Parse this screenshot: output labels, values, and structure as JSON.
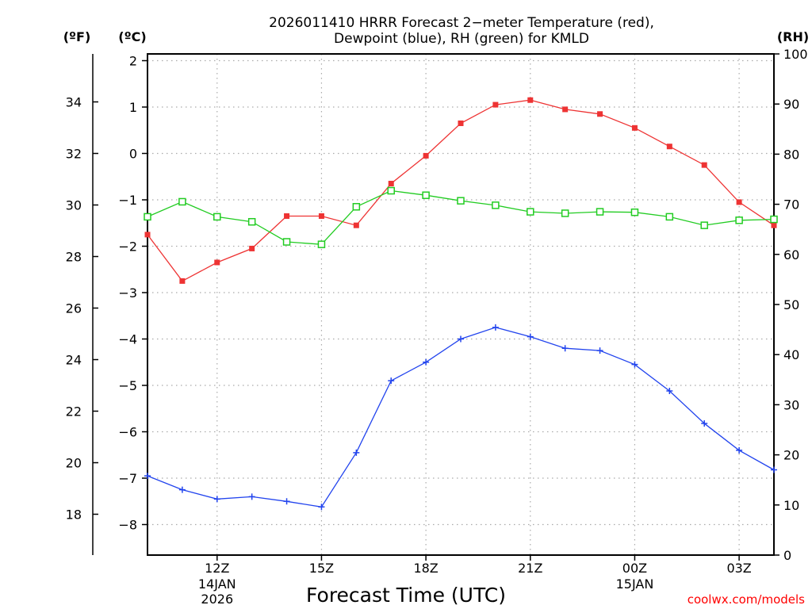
{
  "chart_data": {
    "type": "line",
    "title_line1": "2026011410 HRRR Forecast 2−meter Temperature (red),",
    "title_line2": "Dewpoint (blue), RH (green) for KMLD",
    "xlabel": "Forecast Time (UTC)",
    "credit": "coolwx.com/models",
    "credit_color": "#ff0000",
    "units": {
      "fahrenheit": "(ºF)",
      "celsius": "(ºC)",
      "rh": "(RH)"
    },
    "x": [
      10,
      11,
      12,
      13,
      14,
      15,
      16,
      17,
      18,
      19,
      20,
      21,
      22,
      23,
      24,
      25,
      26,
      27,
      28
    ],
    "xlim": [
      10,
      28
    ],
    "celsius_range": [
      -8.85,
      2.1
    ],
    "rh_range": [
      0,
      100
    ],
    "celsius_ticks": [
      "2",
      "1",
      "0",
      "−1",
      "−2",
      "−3",
      "−4",
      "−5",
      "−6",
      "−7",
      "−8"
    ],
    "celsius_tick_values": [
      2,
      1,
      0,
      -1,
      -2,
      -3,
      -4,
      -5,
      -6,
      -7,
      -8
    ],
    "fahrenheit_ticks": [
      "34",
      "32",
      "30",
      "28",
      "26",
      "24",
      "22",
      "20",
      "18"
    ],
    "fahrenheit_tick_values": [
      34,
      32,
      30,
      28,
      26,
      24,
      22,
      20,
      18
    ],
    "rh_ticks": [
      "100",
      "90",
      "80",
      "70",
      "60",
      "50",
      "40",
      "30",
      "20",
      "10",
      "0"
    ],
    "rh_tick_values": [
      100,
      90,
      80,
      70,
      60,
      50,
      40,
      30,
      20,
      10,
      0
    ],
    "x_ticks": [
      {
        "x": 12,
        "label": "12Z",
        "date1": "14JAN",
        "date2": "2026"
      },
      {
        "x": 15,
        "label": "15Z",
        "date1": "",
        "date2": ""
      },
      {
        "x": 18,
        "label": "18Z",
        "date1": "",
        "date2": ""
      },
      {
        "x": 21,
        "label": "21Z",
        "date1": "",
        "date2": ""
      },
      {
        "x": 24,
        "label": "00Z",
        "date1": "15JAN",
        "date2": ""
      },
      {
        "x": 27,
        "label": "03Z",
        "date1": "",
        "date2": ""
      }
    ],
    "grid": true,
    "series": [
      {
        "name": "Temperature",
        "axis": "celsius",
        "color": "#ee3333",
        "marker": "filled-square",
        "values": [
          -1.75,
          -2.75,
          -2.35,
          -2.05,
          -1.35,
          -1.35,
          -1.55,
          -0.65,
          -0.05,
          0.65,
          1.05,
          1.15,
          0.95,
          0.85,
          0.55,
          0.15,
          -0.25,
          -1.05,
          -1.55
        ]
      },
      {
        "name": "Dewpoint",
        "axis": "celsius",
        "color": "#2244ee",
        "marker": "plus",
        "values": [
          -6.95,
          -7.25,
          -7.45,
          -7.4,
          -7.5,
          -7.62,
          -6.45,
          -4.9,
          -4.5,
          -4.0,
          -3.75,
          -3.95,
          -4.2,
          -4.25,
          -4.55,
          -5.12,
          -5.82,
          -6.4,
          -6.82
        ]
      },
      {
        "name": "RH",
        "axis": "rh",
        "color": "#22cc22",
        "marker": "open-square",
        "values": [
          67.5,
          70.5,
          67.5,
          66.5,
          62.5,
          62.0,
          69.5,
          72.7,
          71.8,
          70.7,
          69.8,
          68.5,
          68.2,
          68.5,
          68.4,
          67.5,
          65.8,
          66.8,
          67.0
        ]
      }
    ]
  }
}
